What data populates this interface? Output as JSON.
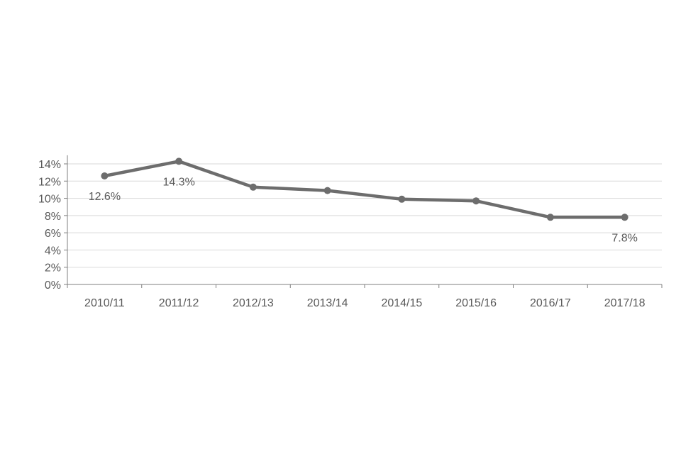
{
  "chart_data": {
    "type": "line",
    "categories": [
      "2010/11",
      "2011/12",
      "2012/13",
      "2013/14",
      "2014/15",
      "2015/16",
      "2016/17",
      "2017/18"
    ],
    "series": [
      {
        "values": [
          12.6,
          14.3,
          11.3,
          10.9,
          9.9,
          9.7,
          7.8,
          7.8
        ],
        "color": "#6d6d6d"
      }
    ],
    "data_labels": [
      {
        "index": 0,
        "text": "12.6%"
      },
      {
        "index": 1,
        "text": "14.3%"
      },
      {
        "index": 7,
        "text": "7.8%"
      }
    ],
    "y_ticks": [
      "0%",
      "2%",
      "4%",
      "6%",
      "8%",
      "10%",
      "12%",
      "14%"
    ],
    "ylim": [
      0,
      15
    ],
    "grid": true,
    "gridColor": "#d9d9d9",
    "axisColor": "#7f7f7f"
  }
}
